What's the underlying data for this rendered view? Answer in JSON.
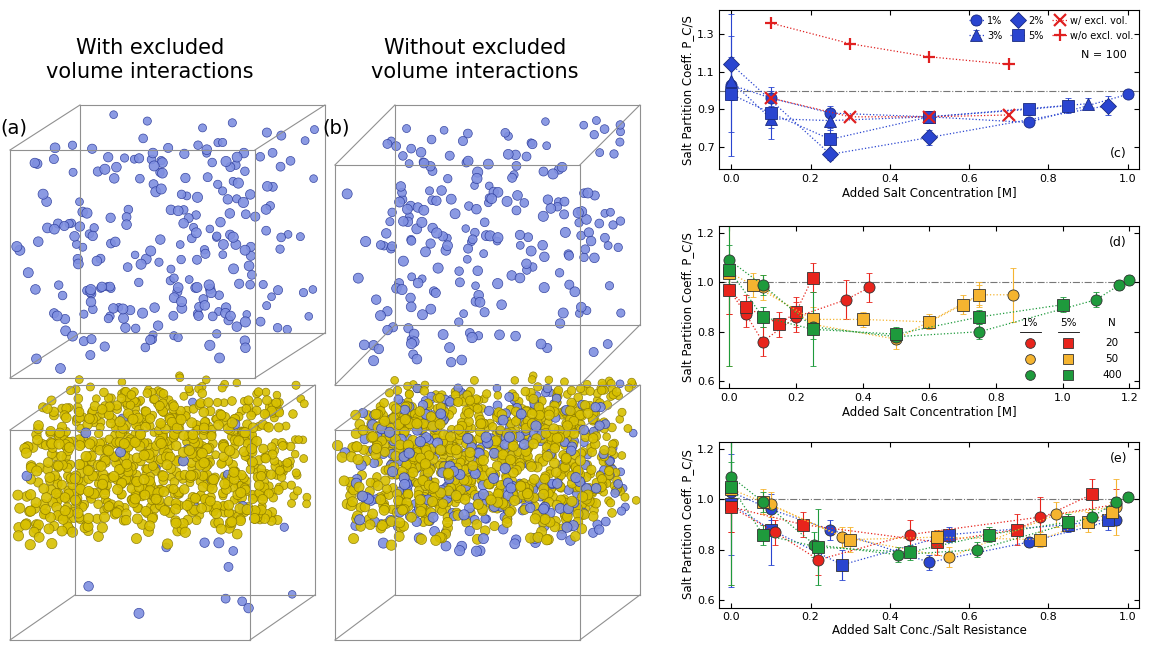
{
  "images": [
    {
      "label": "(a)",
      "title": "With excluded\nvolume interactions"
    },
    {
      "label": "(b)",
      "title": "Without excluded\nvolume interactions"
    }
  ],
  "chart_data": [
    {
      "type": "line",
      "panel_label": "(c)",
      "annotation": "N = 100",
      "xlabel": "Added Salt Concentration [M]",
      "ylabel": "Salt Partition Coeff. P_C/S",
      "xlim": [
        -0.03,
        1.03
      ],
      "ylim": [
        0.58,
        1.43
      ],
      "xticks": [
        {
          "value": 0,
          "label": "0.0"
        },
        0.2,
        0.4,
        0.6,
        0.8,
        {
          "value": 1,
          "label": "1.0"
        }
      ],
      "yticks": [
        0.7,
        0.9,
        1.1,
        1.3
      ],
      "reference_line": 1,
      "legend": "upper right",
      "line_style": "dotted",
      "series": [
        {
          "name": "1%",
          "color": "#2a45d0",
          "marker": "circle",
          "x": [
            0,
            0.1,
            0.25,
            0.5,
            0.75,
            1.0
          ],
          "values": [
            1.03,
            0.96,
            0.88,
            0.86,
            0.83,
            0.98
          ],
          "errors": [
            0.38,
            0.04,
            0.04,
            0.03,
            0.02,
            0.02
          ]
        },
        {
          "name": "3%",
          "color": "#2a45d0",
          "marker": "triangle",
          "x": [
            0,
            0.1,
            0.25,
            0.5,
            0.9
          ],
          "values": [
            1.05,
            0.85,
            0.84,
            0.86,
            0.93
          ],
          "errors": [
            0.1,
            0.05,
            0.05,
            0.03,
            0.03
          ]
        },
        {
          "name": "2%",
          "color": "#2a45d0",
          "marker": "diamond",
          "x": [
            0,
            0.25,
            0.5,
            0.95
          ],
          "values": [
            1.14,
            0.66,
            0.75,
            0.92
          ],
          "errors": [
            0.15,
            0.03,
            0.04,
            0.05
          ]
        },
        {
          "name": "5%",
          "color": "#2a45d0",
          "marker": "square",
          "x": [
            0,
            0.1,
            0.25,
            0.5,
            0.75,
            0.85
          ],
          "values": [
            0.98,
            0.88,
            0.74,
            0.86,
            0.9,
            0.92
          ],
          "errors": [
            0.2,
            0.14,
            0.06,
            0.03,
            0.03,
            0.04
          ]
        },
        {
          "name": "w/ excl. vol.",
          "color": "#e02020",
          "marker": "x",
          "x": [
            0.1,
            0.3,
            0.5,
            0.7
          ],
          "values": [
            0.96,
            0.86,
            0.86,
            0.87
          ]
        },
        {
          "name": "w/o excl. vol.",
          "color": "#e02020",
          "marker": "plus",
          "x": [
            0.1,
            0.3,
            0.5,
            0.7
          ],
          "values": [
            1.36,
            1.25,
            1.18,
            1.14
          ]
        }
      ]
    },
    {
      "type": "line",
      "panel_label": "(d)",
      "xlabel": "Added Salt Concentration [M]",
      "ylabel": "Salt Partition Coeff. P_C/S",
      "xlim": [
        -0.03,
        1.23
      ],
      "ylim": [
        0.57,
        1.23
      ],
      "xticks": [
        {
          "value": 0,
          "label": "0.0"
        },
        0.2,
        0.4,
        0.6,
        0.8,
        {
          "value": 1,
          "label": "1.0"
        },
        1.2
      ],
      "yticks": [
        0.6,
        0.8,
        {
          "value": 1,
          "label": "1.0"
        },
        1.2
      ],
      "reference_line": 1,
      "legend": "lower right",
      "legend_header": "N",
      "line_style": "dotted",
      "series": [
        {
          "name": "20",
          "group": "1%",
          "color": "#e8241c",
          "marker": "circle",
          "x": [
            0,
            0.05,
            0.1,
            0.2,
            0.35,
            0.42
          ],
          "values": [
            0.97,
            0.87,
            0.76,
            0.86,
            0.93,
            0.98
          ],
          "errors": [
            0.1,
            0.05,
            0.06,
            0.06,
            0.08,
            0.06
          ]
        },
        {
          "name": "20",
          "group": "5%",
          "color": "#e8241c",
          "marker": "square",
          "x": [
            0,
            0.05,
            0.15,
            0.2,
            0.25
          ],
          "values": [
            0.97,
            0.9,
            0.83,
            0.88,
            1.02
          ],
          "errors": [
            0.1,
            0.05,
            0.05,
            0.06,
            0.06
          ]
        },
        {
          "name": "50",
          "group": "1%",
          "color": "#f5b430",
          "marker": "circle",
          "x": [
            0.1,
            0.25,
            0.5,
            0.75,
            0.85
          ],
          "values": [
            0.98,
            0.83,
            0.77,
            0.95,
            0.95
          ],
          "errors": [
            0.05,
            0.04,
            0.04,
            0.05,
            0.11
          ]
        },
        {
          "name": "50",
          "group": "5%",
          "color": "#f5b430",
          "marker": "square",
          "x": [
            0,
            0.07,
            0.25,
            0.4,
            0.6,
            0.7,
            0.75
          ],
          "values": [
            1.04,
            0.99,
            0.85,
            0.85,
            0.84,
            0.91,
            0.95
          ],
          "errors": [
            0.38,
            0.05,
            0.05,
            0.03,
            0.03,
            0.04,
            0.04
          ]
        },
        {
          "name": "400",
          "group": "1%",
          "color": "#1e9a3c",
          "marker": "circle",
          "x": [
            0,
            0.1,
            0.25,
            0.5,
            0.75,
            1.1,
            1.17,
            1.2
          ],
          "values": [
            1.09,
            0.99,
            0.82,
            0.78,
            0.8,
            0.93,
            0.99,
            1.01
          ],
          "errors": [
            0.43,
            0.04,
            0.05,
            0.03,
            0.03,
            0.03,
            0.02,
            0.02
          ]
        },
        {
          "name": "400",
          "group": "5%",
          "color": "#1e9a3c",
          "marker": "square",
          "x": [
            0,
            0.1,
            0.25,
            0.5,
            0.75,
            1.0
          ],
          "values": [
            1.05,
            0.86,
            0.81,
            0.79,
            0.86,
            0.91
          ],
          "errors": [
            0.1,
            0.04,
            0.15,
            0.03,
            0.03,
            0.03
          ]
        }
      ]
    },
    {
      "type": "line",
      "panel_label": "(e)",
      "xlabel": "Added Salt Conc./Salt Resistance",
      "ylabel": "Salt Partition Coeff. P_C/S",
      "xlim": [
        -0.03,
        1.03
      ],
      "ylim": [
        0.57,
        1.23
      ],
      "xticks": [
        {
          "value": 0,
          "label": "0.0"
        },
        0.2,
        0.4,
        0.6,
        0.8,
        {
          "value": 1,
          "label": "1.0"
        }
      ],
      "yticks": [
        0.6,
        0.8,
        {
          "value": 1,
          "label": "1.0"
        },
        1.2
      ],
      "reference_line": 1,
      "line_style": "dotted",
      "series": [
        {
          "color": "#2a45d0",
          "marker": "circle",
          "x": [
            0,
            0.1,
            0.25,
            0.5,
            0.75,
            0.97
          ],
          "values": [
            1.03,
            0.96,
            0.88,
            0.75,
            0.83,
            0.92
          ],
          "errors": [
            0.38,
            0.04,
            0.04,
            0.03,
            0.02,
            0.02
          ]
        },
        {
          "color": "#2a45d0",
          "marker": "square",
          "x": [
            0,
            0.1,
            0.28,
            0.55,
            0.85,
            0.95
          ],
          "values": [
            0.98,
            0.88,
            0.74,
            0.86,
            0.9,
            0.92
          ],
          "errors": [
            0.2,
            0.14,
            0.06,
            0.03,
            0.03,
            0.04
          ]
        },
        {
          "color": "#e8241c",
          "marker": "circle",
          "x": [
            0,
            0.11,
            0.22,
            0.45,
            0.78,
            0.97
          ],
          "values": [
            0.97,
            0.87,
            0.76,
            0.86,
            0.93,
            0.98
          ],
          "errors": [
            0.1,
            0.05,
            0.06,
            0.06,
            0.08,
            0.06
          ]
        },
        {
          "color": "#e8241c",
          "marker": "square",
          "x": [
            0,
            0.18,
            0.52,
            0.72,
            0.91
          ],
          "values": [
            0.97,
            0.9,
            0.83,
            0.88,
            1.02
          ],
          "errors": [
            0.1,
            0.05,
            0.05,
            0.06,
            0.06
          ]
        },
        {
          "color": "#f5b430",
          "marker": "circle",
          "x": [
            0.1,
            0.28,
            0.55,
            0.82,
            0.97
          ],
          "values": [
            0.98,
            0.85,
            0.77,
            0.94,
            0.97
          ],
          "errors": [
            0.05,
            0.04,
            0.04,
            0.05,
            0.11
          ]
        },
        {
          "color": "#f5b430",
          "marker": "square",
          "x": [
            0,
            0.08,
            0.3,
            0.52,
            0.78,
            0.9,
            0.96
          ],
          "values": [
            1.04,
            0.99,
            0.84,
            0.85,
            0.84,
            0.91,
            0.95
          ],
          "errors": [
            0.38,
            0.05,
            0.05,
            0.03,
            0.03,
            0.04,
            0.04
          ]
        },
        {
          "color": "#1e9a3c",
          "marker": "circle",
          "x": [
            0,
            0.08,
            0.21,
            0.42,
            0.62,
            0.91,
            0.97,
            1.0
          ],
          "values": [
            1.09,
            0.99,
            0.82,
            0.78,
            0.8,
            0.93,
            0.99,
            1.01
          ],
          "errors": [
            0.43,
            0.04,
            0.05,
            0.03,
            0.03,
            0.03,
            0.02,
            0.02
          ]
        },
        {
          "color": "#1e9a3c",
          "marker": "square",
          "x": [
            0,
            0.08,
            0.22,
            0.45,
            0.65,
            0.85
          ],
          "values": [
            1.05,
            0.86,
            0.81,
            0.79,
            0.86,
            0.91
          ],
          "errors": [
            0.1,
            0.04,
            0.15,
            0.03,
            0.03,
            0.03
          ]
        }
      ]
    }
  ]
}
